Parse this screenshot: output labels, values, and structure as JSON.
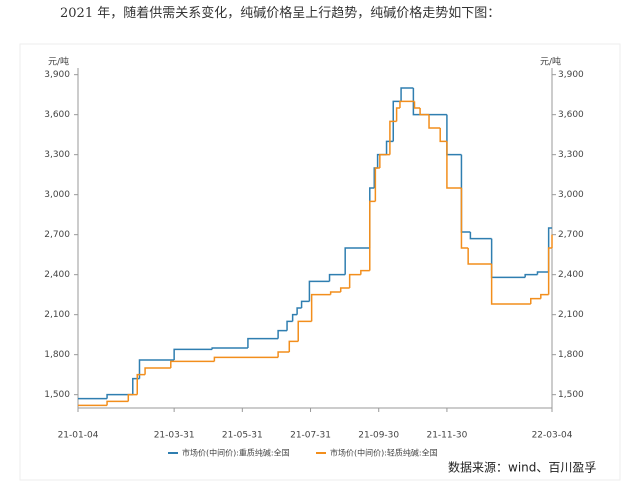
{
  "intro_text": "2021 年，随着供需关系变化，纯碱价格呈上行趋势，纯碱价格走势如下图：",
  "chart_data": {
    "type": "line",
    "step": "after",
    "ylabel": "元/吨",
    "y2label": "元/吨",
    "xlim": [
      "21-01-04",
      "22-03-04"
    ],
    "xticks": [
      "21-01-04",
      "21-03-31",
      "21-05-31",
      "21-07-31",
      "21-09-30",
      "21-11-30",
      "22-03-04"
    ],
    "ylim": [
      1400,
      3950
    ],
    "yticks": [
      {
        "value": 1500,
        "label": "1,500"
      },
      {
        "value": 1800,
        "label": "1,800"
      },
      {
        "value": 2100,
        "label": "2,100"
      },
      {
        "value": 2400,
        "label": "2,400"
      },
      {
        "value": 2700,
        "label": "2,700"
      },
      {
        "value": 3000,
        "label": "3,000"
      },
      {
        "value": 3300,
        "label": "3,300"
      },
      {
        "value": 3600,
        "label": "3,600"
      },
      {
        "value": 3900,
        "label": "3,900"
      }
    ],
    "y2lim": [
      1400,
      3950
    ],
    "y2ticks": [
      {
        "value": 1500,
        "label": "1,500"
      },
      {
        "value": 1800,
        "label": "1,800"
      },
      {
        "value": 2100,
        "label": "2,100"
      },
      {
        "value": 2400,
        "label": "2,400"
      },
      {
        "value": 2700,
        "label": "2,700"
      },
      {
        "value": 3000,
        "label": "3,000"
      },
      {
        "value": 3300,
        "label": "3,300"
      },
      {
        "value": 3600,
        "label": "3,600"
      },
      {
        "value": 3900,
        "label": "3,900"
      }
    ],
    "series": [
      {
        "name": "市场价(中间价):重质纯碱:全国",
        "color": "#2f7eb0",
        "x": [
          "21-01-04",
          "21-01-30",
          "21-02-22",
          "21-02-28",
          "21-03-31",
          "21-05-04",
          "21-06-05",
          "21-07-02",
          "21-07-10",
          "21-07-15",
          "21-07-19",
          "21-07-23",
          "21-07-30",
          "21-08-17",
          "21-08-31",
          "21-09-22",
          "21-09-26",
          "21-09-29",
          "21-10-07",
          "21-10-13",
          "21-10-20",
          "21-10-31",
          "21-11-30",
          "21-12-13",
          "21-12-21",
          "22-01-09",
          "22-02-08",
          "22-02-19",
          "22-03-01",
          "22-03-04"
        ],
        "values": [
          1470,
          1500,
          1620,
          1760,
          1840,
          1850,
          1920,
          1980,
          2050,
          2100,
          2150,
          2200,
          2350,
          2400,
          2600,
          3050,
          3200,
          3300,
          3400,
          3700,
          3800,
          3600,
          3300,
          2720,
          2670,
          2380,
          2400,
          2420,
          2750,
          2750
        ]
      },
      {
        "name": "市场价(中间价):轻质纯碱:全国",
        "color": "#f28e1c",
        "x": [
          "21-01-04",
          "21-01-30",
          "21-02-18",
          "21-02-26",
          "21-03-05",
          "21-03-28",
          "21-05-06",
          "21-07-02",
          "21-07-12",
          "21-07-20",
          "21-08-01",
          "21-08-18",
          "21-08-27",
          "21-09-04",
          "21-09-14",
          "21-09-22",
          "21-09-27",
          "21-10-01",
          "21-10-10",
          "21-10-16",
          "21-10-19",
          "21-11-01",
          "21-11-06",
          "21-11-14",
          "21-11-24",
          "21-11-30",
          "21-12-13",
          "21-12-19",
          "22-01-09",
          "22-02-13",
          "22-02-22",
          "22-03-01",
          "22-03-04"
        ],
        "values": [
          1420,
          1450,
          1500,
          1650,
          1700,
          1750,
          1780,
          1820,
          1900,
          2050,
          2250,
          2270,
          2300,
          2400,
          2430,
          2950,
          3200,
          3300,
          3550,
          3650,
          3700,
          3650,
          3600,
          3500,
          3400,
          3050,
          2600,
          2480,
          2180,
          2220,
          2250,
          2600,
          2700
        ]
      }
    ]
  },
  "source": "数据来源：wind、百川盈孚"
}
